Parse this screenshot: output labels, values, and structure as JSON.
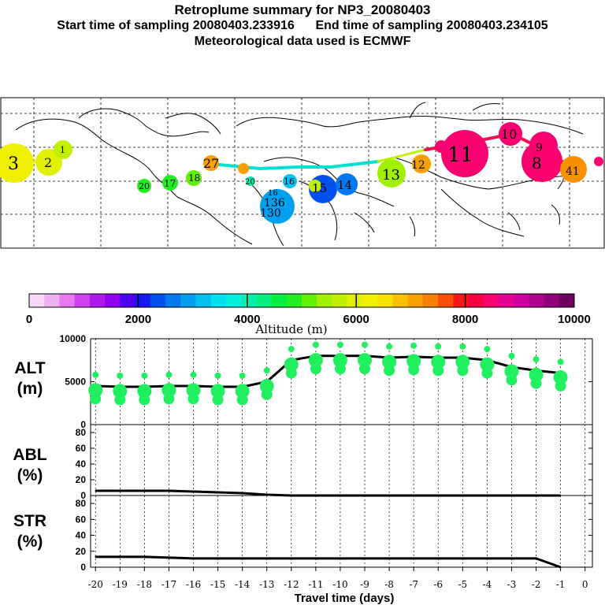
{
  "header": {
    "title": "Retroplume summary for NP3_20080403",
    "line2": "Start time of sampling 20080403.233916      End time of sampling 20080403.234105",
    "line3": "Meteorological data used is ECMWF"
  },
  "map": {
    "labels": [
      "3",
      "2",
      "1",
      "27",
      "20",
      "17",
      "18",
      "20",
      "16",
      "15",
      "14",
      "13",
      "12",
      "11",
      "10",
      "9",
      "8",
      "41",
      "16",
      "136",
      "130"
    ]
  },
  "colorbar": {
    "colors": [
      "#f8d8f8",
      "#f0b0f0",
      "#e878f0",
      "#d040f0",
      "#b018f0",
      "#9000f0",
      "#5000f0",
      "#1818f0",
      "#0050f0",
      "#0078f0",
      "#00a0f0",
      "#00c0f0",
      "#00e0f0",
      "#00f0e0",
      "#00f0b0",
      "#00f080",
      "#00f040",
      "#20f020",
      "#60f000",
      "#a0f000",
      "#c0f000",
      "#e0f000",
      "#f0f000",
      "#f8e000",
      "#f8c000",
      "#f8a000",
      "#f88000",
      "#f85000",
      "#f81818",
      "#f80040",
      "#f80070",
      "#e80090",
      "#d000a0",
      "#b00090",
      "#900078",
      "#700060"
    ],
    "ticks": [
      "0",
      "2000",
      "4000",
      "6000",
      "8000",
      "10000"
    ],
    "label": "Altitude  (m)"
  },
  "chart_data": [
    {
      "type": "line",
      "panel": "ALT",
      "ylabel_line1": "ALT",
      "ylabel_line2": "(m)",
      "ylim": [
        0,
        10000
      ],
      "yticks": [
        "10000",
        "5000",
        "0"
      ],
      "x": [
        -20,
        -19,
        -18,
        -17,
        -16,
        -15,
        -14,
        -13,
        -12,
        -11,
        -10,
        -9,
        -8,
        -7,
        -6,
        -5,
        -4,
        -3,
        -2,
        -1
      ],
      "values": [
        4500,
        4400,
        4400,
        4500,
        4500,
        4400,
        4400,
        5000,
        7500,
        8000,
        8000,
        8000,
        7800,
        7900,
        7800,
        7800,
        7500,
        6700,
        6300,
        6000
      ]
    },
    {
      "type": "line",
      "panel": "ABL",
      "ylabel_line1": "ABL",
      "ylabel_line2": "(%)",
      "ylim": [
        0,
        90
      ],
      "yticks": [
        "80",
        "60",
        "40",
        "20",
        "0"
      ],
      "x": [
        -20,
        -19,
        -18,
        -17,
        -16,
        -15,
        -14,
        -13,
        -12,
        -11,
        -10,
        -9,
        -8,
        -7,
        -6,
        -5,
        -4,
        -3,
        -2,
        -1
      ],
      "values": [
        6,
        6,
        6,
        6,
        5,
        4,
        3,
        1,
        0,
        0,
        0,
        0,
        0,
        0,
        0,
        0,
        0,
        0,
        0,
        0
      ]
    },
    {
      "type": "line",
      "panel": "STR",
      "ylabel_line1": "STR",
      "ylabel_line2": "(%)",
      "ylim": [
        0,
        90
      ],
      "yticks": [
        "80",
        "60",
        "40",
        "20",
        "0"
      ],
      "x": [
        -20,
        -19,
        -18,
        -17,
        -16,
        -15,
        -14,
        -13,
        -12,
        -11,
        -10,
        -9,
        -8,
        -7,
        -6,
        -5,
        -4,
        -3,
        -2,
        -1
      ],
      "values": [
        13,
        13,
        13,
        12,
        11,
        11,
        11,
        11,
        11,
        11,
        11,
        11,
        11,
        11,
        11,
        11,
        11,
        11,
        11,
        0
      ]
    }
  ],
  "xaxis": {
    "ticks": [
      "-20",
      "-19",
      "-18",
      "-17",
      "-16",
      "-15",
      "-14",
      "-13",
      "-12",
      "-11",
      "-10",
      "-9",
      "-8",
      "-7",
      "-6",
      "-5",
      "-4",
      "-3",
      "-2",
      "-1",
      "0"
    ],
    "label": "Travel time (days)"
  }
}
